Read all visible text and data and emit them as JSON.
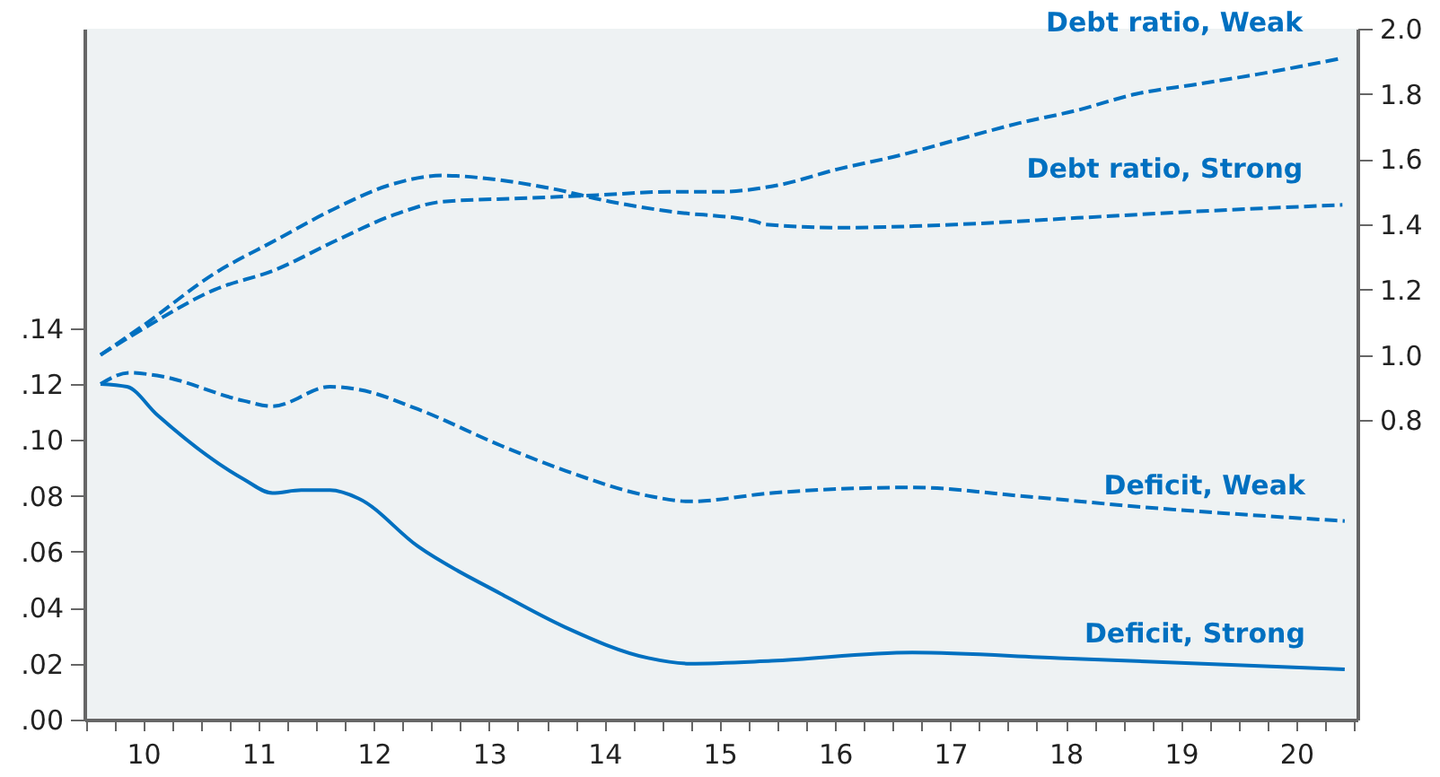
{
  "chart_data": {
    "type": "line",
    "xlim": [
      9.49,
      20.53
    ],
    "ylim": [
      0,
      0.247
    ],
    "y2lim": [
      -0.118,
      2.0
    ],
    "xticks": [
      {
        "value": 9.5,
        "label": null
      },
      {
        "value": 9.75,
        "label": null
      },
      {
        "value": 10,
        "label": "10"
      },
      {
        "value": 10.25,
        "label": null
      },
      {
        "value": 10.5,
        "label": null
      },
      {
        "value": 10.75,
        "label": null
      },
      {
        "value": 11,
        "label": "11"
      },
      {
        "value": 11.25,
        "label": null
      },
      {
        "value": 11.5,
        "label": null
      },
      {
        "value": 11.75,
        "label": null
      },
      {
        "value": 12,
        "label": "12"
      },
      {
        "value": 12.25,
        "label": null
      },
      {
        "value": 12.5,
        "label": null
      },
      {
        "value": 12.75,
        "label": null
      },
      {
        "value": 13,
        "label": "13"
      },
      {
        "value": 13.25,
        "label": null
      },
      {
        "value": 13.5,
        "label": null
      },
      {
        "value": 13.75,
        "label": null
      },
      {
        "value": 14,
        "label": "14"
      },
      {
        "value": 14.25,
        "label": null
      },
      {
        "value": 14.5,
        "label": null
      },
      {
        "value": 14.75,
        "label": null
      },
      {
        "value": 15,
        "label": "15"
      },
      {
        "value": 15.25,
        "label": null
      },
      {
        "value": 15.5,
        "label": null
      },
      {
        "value": 15.75,
        "label": null
      },
      {
        "value": 16,
        "label": "16"
      },
      {
        "value": 16.25,
        "label": null
      },
      {
        "value": 16.5,
        "label": null
      },
      {
        "value": 16.75,
        "label": null
      },
      {
        "value": 17,
        "label": "17"
      },
      {
        "value": 17.25,
        "label": null
      },
      {
        "value": 17.5,
        "label": null
      },
      {
        "value": 17.75,
        "label": null
      },
      {
        "value": 18,
        "label": "18"
      },
      {
        "value": 18.25,
        "label": null
      },
      {
        "value": 18.5,
        "label": null
      },
      {
        "value": 18.75,
        "label": null
      },
      {
        "value": 19,
        "label": "19"
      },
      {
        "value": 19.25,
        "label": null
      },
      {
        "value": 19.5,
        "label": null
      },
      {
        "value": 19.75,
        "label": null
      },
      {
        "value": 20,
        "label": "20"
      },
      {
        "value": 20.25,
        "label": null
      },
      {
        "value": 20.5,
        "label": null
      }
    ],
    "yticks": [
      {
        "value": 0,
        "label": ".00"
      },
      {
        "value": 0.02,
        "label": ".02"
      },
      {
        "value": 0.04,
        "label": ".04"
      },
      {
        "value": 0.06,
        "label": ".06"
      },
      {
        "value": 0.08,
        "label": ".08"
      },
      {
        "value": 0.1,
        "label": ".10"
      },
      {
        "value": 0.12,
        "label": ".12"
      },
      {
        "value": 0.14,
        "label": ".14"
      }
    ],
    "y2ticks": [
      {
        "value": 0.8,
        "label": "0.8"
      },
      {
        "value": 1.0,
        "label": "1.0"
      },
      {
        "value": 1.2,
        "label": "1.2"
      },
      {
        "value": 1.4,
        "label": "1.4"
      },
      {
        "value": 1.6,
        "label": "1.6"
      },
      {
        "value": 1.8,
        "label": "1.8"
      },
      {
        "value": 2.0,
        "label": "2.0"
      }
    ],
    "grid": false,
    "marker": "none",
    "series": [
      {
        "name": "Debt ratio, Weak",
        "color": "#0070c0",
        "axis": "y2",
        "line_style": "dashed",
        "x": [
          9.63,
          10.0,
          10.62,
          11.14,
          11.67,
          12.18,
          12.6,
          13.27,
          13.94,
          14.56,
          14.98,
          15.5,
          16.03,
          16.54,
          17.06,
          17.59,
          18.1,
          18.61,
          19.14,
          19.66,
          20.4
        ],
        "values": [
          1.0,
          1.08,
          1.2,
          1.26,
          1.35,
          1.43,
          1.47,
          1.48,
          1.49,
          1.5,
          1.5,
          1.52,
          1.57,
          1.61,
          1.66,
          1.71,
          1.75,
          1.8,
          1.83,
          1.86,
          1.91
        ]
      },
      {
        "name": "Debt ratio, Strong",
        "color": "#0070c0",
        "axis": "y2",
        "line_style": "dashed",
        "x": [
          9.63,
          10.0,
          10.62,
          11.14,
          11.67,
          12.13,
          12.6,
          13.0,
          13.54,
          14.05,
          14.56,
          15.3,
          15.4,
          16.03,
          17.06,
          18.1,
          19.14,
          20.4
        ],
        "values": [
          1.0,
          1.09,
          1.25,
          1.35,
          1.45,
          1.52,
          1.55,
          1.54,
          1.51,
          1.47,
          1.44,
          1.41,
          1.4,
          1.39,
          1.4,
          1.42,
          1.44,
          1.46
        ]
      },
      {
        "name": "Deficit, Weak",
        "color": "#0070c0",
        "axis": "y",
        "line_style": "dashed",
        "x": [
          9.63,
          9.88,
          10.12,
          10.87,
          11.12,
          11.62,
          11.87,
          12.38,
          13.1,
          13.66,
          14.38,
          14.74,
          15.45,
          16.67,
          17.6,
          18.66,
          20.42
        ],
        "values": [
          0.12,
          0.124,
          0.123,
          0.114,
          0.112,
          0.119,
          0.118,
          0.111,
          0.098,
          0.089,
          0.08,
          0.078,
          0.081,
          0.083,
          0.08,
          0.076,
          0.071
        ]
      },
      {
        "name": "Deficit, Strong",
        "color": "#0070c0",
        "axis": "y",
        "line_style": "solid",
        "x": [
          9.63,
          9.86,
          10.12,
          10.87,
          11.12,
          11.37,
          11.62,
          11.87,
          12.38,
          13.1,
          13.66,
          14.38,
          14.74,
          15.45,
          16.67,
          17.94,
          20.42
        ],
        "values": [
          0.12,
          0.119,
          0.109,
          0.086,
          0.081,
          0.082,
          0.082,
          0.079,
          0.062,
          0.045,
          0.033,
          0.022,
          0.02,
          0.021,
          0.024,
          0.022,
          0.018
        ]
      }
    ]
  }
}
